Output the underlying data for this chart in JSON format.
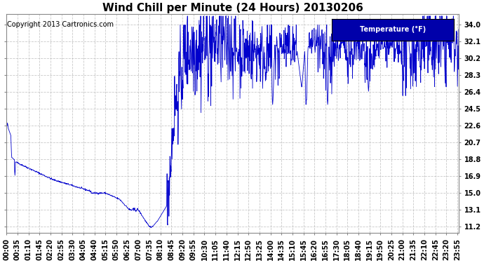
{
  "title": "Wind Chill per Minute (24 Hours) 20130206",
  "copyright": "Copyright 2013 Cartronics.com",
  "legend_label": "Temperature (°F)",
  "line_color": "#0000cc",
  "background_color": "#ffffff",
  "plot_bg_color": "#ffffff",
  "grid_color": "#bbbbbb",
  "legend_bg": "#0000aa",
  "legend_fg": "#ffffff",
  "yticks": [
    11.2,
    13.1,
    15.0,
    16.9,
    18.8,
    20.7,
    22.6,
    24.5,
    26.4,
    28.3,
    30.2,
    32.1,
    34.0
  ],
  "ylim": [
    10.5,
    35.2
  ],
  "title_fontsize": 11,
  "copyright_fontsize": 7,
  "tick_fontsize": 7,
  "ylabel_fontsize": 8
}
